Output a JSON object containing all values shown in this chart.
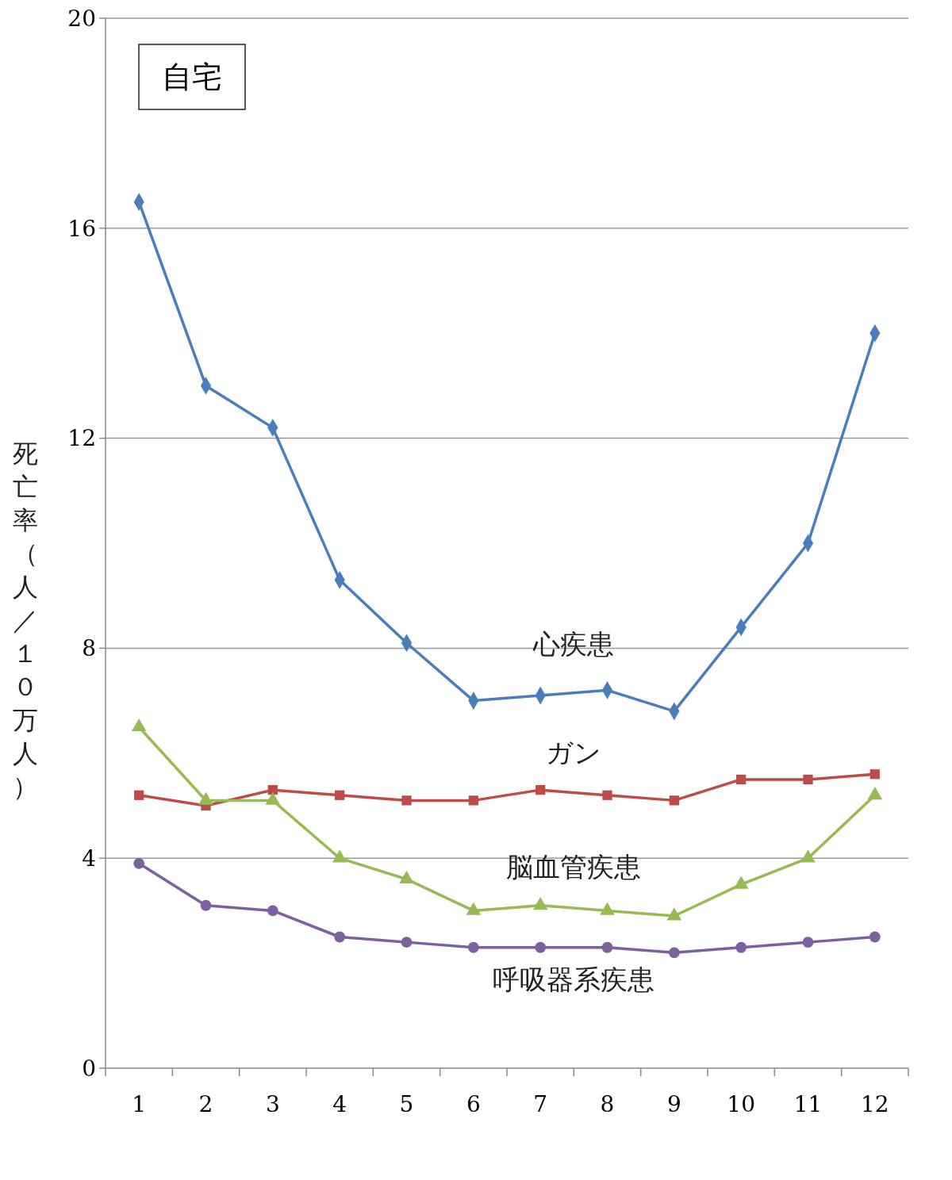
{
  "chart_data": {
    "type": "line",
    "ylabel": "死亡率（人／１０万人）",
    "annotations": [
      "自宅"
    ],
    "categories": [
      "1",
      "2",
      "3",
      "4",
      "5",
      "6",
      "7",
      "8",
      "9",
      "10",
      "11",
      "12"
    ],
    "ylim": [
      0,
      20
    ],
    "yticks": [
      0,
      4,
      8,
      12,
      16,
      20
    ],
    "grid": "y",
    "series": [
      {
        "name": "心疾患",
        "color": "#4a7ebb",
        "marker": "diamond",
        "values": [
          16.5,
          13.0,
          12.2,
          9.3,
          8.1,
          7.0,
          7.1,
          7.2,
          6.8,
          8.4,
          10.0,
          14.0
        ]
      },
      {
        "name": "ガン",
        "color": "#be4b48",
        "marker": "square",
        "values": [
          5.2,
          5.0,
          5.3,
          5.2,
          5.1,
          5.1,
          5.3,
          5.2,
          5.1,
          5.5,
          5.5,
          5.6
        ]
      },
      {
        "name": "脳血管疾患",
        "color": "#98b954",
        "marker": "triangle",
        "values": [
          6.5,
          5.1,
          5.1,
          4.0,
          3.6,
          3.0,
          3.1,
          3.0,
          2.9,
          3.5,
          4.0,
          5.2
        ]
      },
      {
        "name": "呼吸器系疾患",
        "color": "#7d60a0",
        "marker": "circle",
        "values": [
          3.9,
          3.1,
          3.0,
          2.5,
          2.4,
          2.3,
          2.3,
          2.3,
          2.2,
          2.3,
          2.4,
          2.5
        ]
      }
    ]
  }
}
